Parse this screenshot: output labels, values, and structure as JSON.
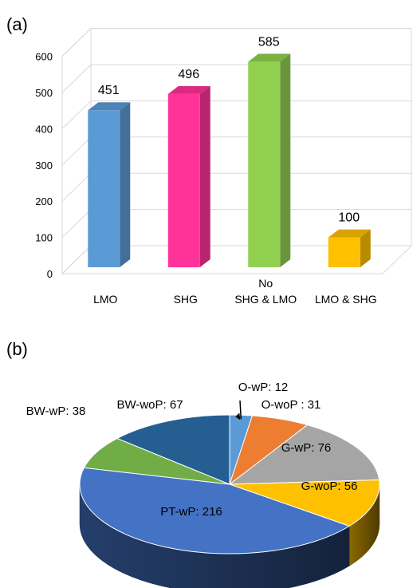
{
  "panels": {
    "a": "(a)",
    "b": "(b)"
  },
  "chart_data": [
    {
      "type": "bar",
      "categories": [
        "LMO",
        "SHG",
        "No\nSHG & LMO",
        "LMO & SHG"
      ],
      "values": [
        451,
        496,
        585,
        100
      ],
      "colors": [
        "#5B9BD5",
        "#FF3399",
        "#92D050",
        "#FFC000"
      ],
      "ylim": [
        0,
        600
      ],
      "yticks": [
        0,
        100,
        200,
        300,
        400,
        500,
        600
      ],
      "grid": true,
      "data_labels": true
    },
    {
      "type": "pie",
      "labels": [
        "O-wP: 12",
        "O-woP : 31",
        "G-wP: 76",
        "G-woP: 56",
        "PT-wP: 216",
        "BW-wP: 38",
        "BW-woP: 67"
      ],
      "values": [
        12,
        31,
        76,
        56,
        216,
        38,
        67
      ],
      "colors": [
        "#5B9BD5",
        "#ED7D31",
        "#A5A5A5",
        "#FFC000",
        "#4472C4",
        "#70AD47",
        "#255E91"
      ],
      "style": "3d"
    }
  ]
}
